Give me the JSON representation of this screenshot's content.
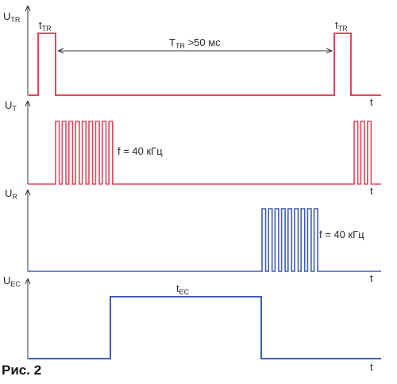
{
  "colors": {
    "red": "#e5465a",
    "blue": "#3f5fb3",
    "axis": "#333333"
  },
  "caption": "Рис. 2",
  "time_axis_label": "t",
  "signals": [
    {
      "id": "utr",
      "main": "U",
      "sub": "TR",
      "color": "red"
    },
    {
      "id": "ut",
      "main": "U",
      "sub": "T",
      "color": "red"
    },
    {
      "id": "ur",
      "main": "U",
      "sub": "R",
      "color": "blue"
    },
    {
      "id": "uec",
      "main": "U",
      "sub": "EC",
      "color": "blue"
    }
  ],
  "annotations": {
    "ttr_left": {
      "main": "t",
      "sub": "TR"
    },
    "ttr_right": {
      "main": "t",
      "sub": "TR"
    },
    "period": {
      "main": "T",
      "sub": "TR",
      "rest": " >50 мс"
    },
    "freq_t": "f = 40 кГц",
    "freq_r": "f = 40 кГц",
    "tec": {
      "main": "t",
      "sub": "EC"
    }
  }
}
